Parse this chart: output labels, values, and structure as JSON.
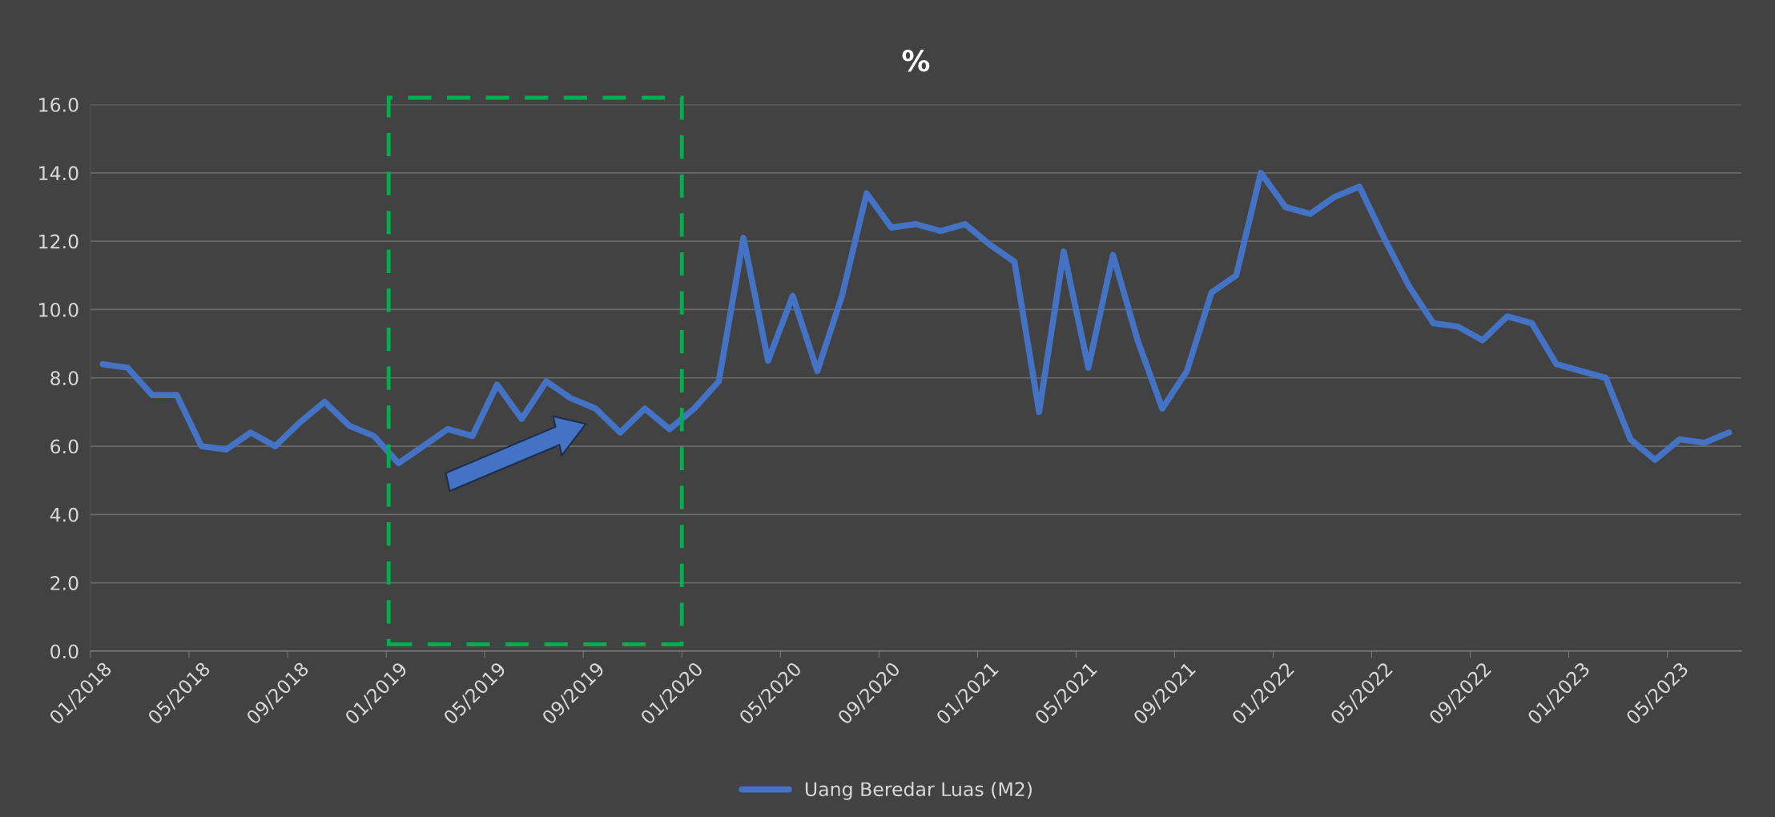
{
  "chart_data": {
    "type": "line",
    "title": "%",
    "categories": [
      "01/2018",
      null,
      null,
      null,
      "05/2018",
      null,
      null,
      null,
      "09/2018",
      null,
      null,
      null,
      "01/2019",
      null,
      null,
      null,
      "05/2019",
      null,
      null,
      null,
      "09/2019",
      null,
      null,
      null,
      "01/2020",
      null,
      null,
      null,
      "05/2020",
      null,
      null,
      null,
      "09/2020",
      null,
      null,
      null,
      "01/2021",
      null,
      null,
      null,
      "05/2021",
      null,
      null,
      null,
      "09/2021",
      null,
      null,
      null,
      "01/2022",
      null,
      null,
      null,
      "05/2022",
      null,
      null,
      null,
      "09/2022",
      null,
      null,
      null,
      "01/2023",
      null,
      null,
      null,
      "05/2023",
      null,
      null
    ],
    "series": [
      {
        "name": "Uang Beredar Luas (M2)",
        "color": "#4472c4",
        "values": [
          8.4,
          8.3,
          7.5,
          7.5,
          6.0,
          5.9,
          6.4,
          6.0,
          6.7,
          7.3,
          6.6,
          6.3,
          5.5,
          6.0,
          6.5,
          6.3,
          7.8,
          6.8,
          7.9,
          7.4,
          7.1,
          6.4,
          7.1,
          6.5,
          7.1,
          7.9,
          12.1,
          8.5,
          10.4,
          8.2,
          10.4,
          13.4,
          12.4,
          12.5,
          12.3,
          12.5,
          11.9,
          11.4,
          7.0,
          11.7,
          8.3,
          11.6,
          9.1,
          7.1,
          8.2,
          10.5,
          11.0,
          14.0,
          13.0,
          12.8,
          13.3,
          13.6,
          12.1,
          10.7,
          9.6,
          9.5,
          9.1,
          9.8,
          9.6,
          8.4,
          8.2,
          8.0,
          6.2,
          5.6,
          6.2,
          6.1,
          6.4
        ]
      }
    ],
    "ylim": [
      0,
      16
    ],
    "yticks": [
      {
        "value": 0,
        "label": "0.0"
      },
      {
        "value": 2,
        "label": "2.0"
      },
      {
        "value": 4,
        "label": "4.0"
      },
      {
        "value": 6,
        "label": "6.0"
      },
      {
        "value": 8,
        "label": "8.0"
      },
      {
        "value": 10,
        "label": "10.0"
      },
      {
        "value": 12,
        "label": "12.0"
      },
      {
        "value": 14,
        "label": "14.0"
      },
      {
        "value": 16,
        "label": "16.0"
      }
    ],
    "grid": "y",
    "legend": "bottom",
    "marker": "none",
    "line_style": "solid"
  }
}
